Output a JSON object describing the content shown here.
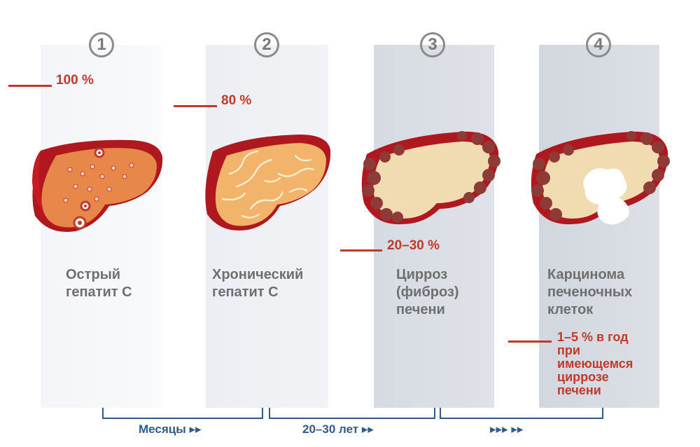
{
  "stages": [
    {
      "number": "1",
      "label_lines": [
        "Острый",
        "гепатит С"
      ],
      "percent": "100 %"
    },
    {
      "number": "2",
      "label_lines": [
        "Хронический",
        "гепатит С"
      ],
      "percent": "80 %"
    },
    {
      "number": "3",
      "label_lines": [
        "Цирроз",
        "(фиброз)",
        "печени"
      ],
      "percent": "20–30 %"
    },
    {
      "number": "4",
      "label_lines": [
        "Карцинома",
        "печеночных",
        "клеток"
      ],
      "note_lines": [
        "1–5 % в год",
        "при",
        "имеющемся",
        "циррозе",
        "печени"
      ]
    }
  ],
  "timeline": [
    {
      "label": "Месяцы ▸▸"
    },
    {
      "label": "20–30 лет ▸▸"
    },
    {
      "label": "▸▸▸ ▸▸"
    }
  ],
  "colors": {
    "accent_red": "#c0392b",
    "liver_healthy": "#e8874a",
    "liver_red": "#c81a20",
    "liver_cirrhosis": "#f1dcb2",
    "nodule": "#8e3a36",
    "timeline_blue": "#2f5b8a"
  }
}
